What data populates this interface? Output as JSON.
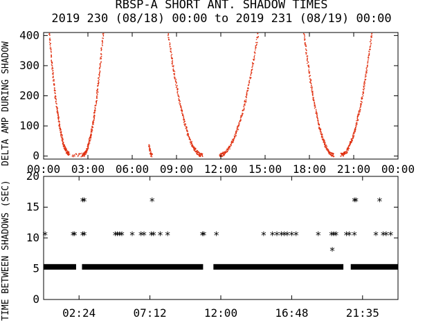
{
  "chart_data": [
    {
      "type": "scatter",
      "title": "RBSP-A SHORT ANT. SHADOW TIMES",
      "subtitle": "2019 230 (08/18) 00:00 to 2019 231 (08/19) 00:00",
      "ylabel": "DELTA AMP DURING SHADOW",
      "xlim": [
        0,
        24
      ],
      "ylim": [
        -10,
        410
      ],
      "xtick_labels": [
        "00:00",
        "03:00",
        "06:00",
        "09:00",
        "12:00",
        "15:00",
        "18:00",
        "21:00",
        "00:00"
      ],
      "ytick_labels": [
        "0",
        "100",
        "200",
        "300",
        "400"
      ],
      "point_color": "#e03010",
      "series": [
        {
          "segments": [
            {
              "x_start": 0.35,
              "y_start": 410,
              "x_end": 1.7,
              "y_end": 10
            },
            {
              "x_start": 1.9,
              "y_start": 5,
              "x_end": 2.6,
              "y_end": 5
            },
            {
              "x_start": 2.6,
              "y_start": 5,
              "x_end": 4.0,
              "y_end": 410
            },
            {
              "x_start": 7.1,
              "y_start": 40,
              "x_end": 7.3,
              "y_end": 5
            },
            {
              "x_start": 8.4,
              "y_start": 410,
              "x_end": 10.7,
              "y_end": 5
            },
            {
              "x_start": 11.9,
              "y_start": 5,
              "x_end": 14.5,
              "y_end": 410
            },
            {
              "x_start": 17.6,
              "y_start": 410,
              "x_end": 19.6,
              "y_end": 5
            },
            {
              "x_start": 20.1,
              "y_start": 5,
              "x_end": 22.2,
              "y_end": 410
            }
          ]
        }
      ]
    },
    {
      "type": "scatter",
      "ylabel": "TIME BETWEEN SHADOWS (SEC)",
      "xlim": [
        0,
        24
      ],
      "ylim": [
        0,
        20
      ],
      "xtick_labels": [
        "02:24",
        "07:12",
        "12:00",
        "16:48",
        "21:35"
      ],
      "ytick_labels": [
        "0",
        "5",
        "10",
        "15",
        "20"
      ],
      "marker": "*",
      "series": [
        {
          "band_value": 5.3,
          "band_ranges": [
            [
              0,
              2.2
            ],
            [
              2.6,
              10.8
            ],
            [
              11.5,
              20.3
            ],
            [
              20.8,
              24
            ]
          ],
          "points": [
            [
              0.1,
              10.5
            ],
            [
              2.0,
              10.5
            ],
            [
              2.1,
              10.5
            ],
            [
              2.65,
              16
            ],
            [
              2.75,
              16
            ],
            [
              2.65,
              10.5
            ],
            [
              2.75,
              10.5
            ],
            [
              4.85,
              10.5
            ],
            [
              5.0,
              10.5
            ],
            [
              5.15,
              10.5
            ],
            [
              5.3,
              10.5
            ],
            [
              6.0,
              10.5
            ],
            [
              6.6,
              10.5
            ],
            [
              6.8,
              10.5
            ],
            [
              7.3,
              10.5
            ],
            [
              7.45,
              10.5
            ],
            [
              7.35,
              16
            ],
            [
              7.9,
              10.5
            ],
            [
              8.4,
              10.5
            ],
            [
              10.75,
              10.5
            ],
            [
              10.85,
              10.5
            ],
            [
              11.7,
              10.5
            ],
            [
              14.9,
              10.5
            ],
            [
              15.5,
              10.5
            ],
            [
              15.8,
              10.5
            ],
            [
              16.1,
              10.5
            ],
            [
              16.3,
              10.5
            ],
            [
              16.5,
              10.5
            ],
            [
              16.8,
              10.5
            ],
            [
              17.1,
              10.5
            ],
            [
              18.6,
              10.5
            ],
            [
              19.5,
              10.5
            ],
            [
              19.65,
              10.5
            ],
            [
              19.8,
              10.5
            ],
            [
              19.55,
              8
            ],
            [
              20.5,
              10.5
            ],
            [
              20.7,
              10.5
            ],
            [
              21.05,
              16
            ],
            [
              21.15,
              16
            ],
            [
              21.05,
              10.5
            ],
            [
              22.5,
              10.5
            ],
            [
              22.75,
              16
            ],
            [
              23.0,
              10.5
            ],
            [
              23.2,
              10.5
            ],
            [
              23.5,
              10.5
            ]
          ]
        }
      ]
    }
  ]
}
